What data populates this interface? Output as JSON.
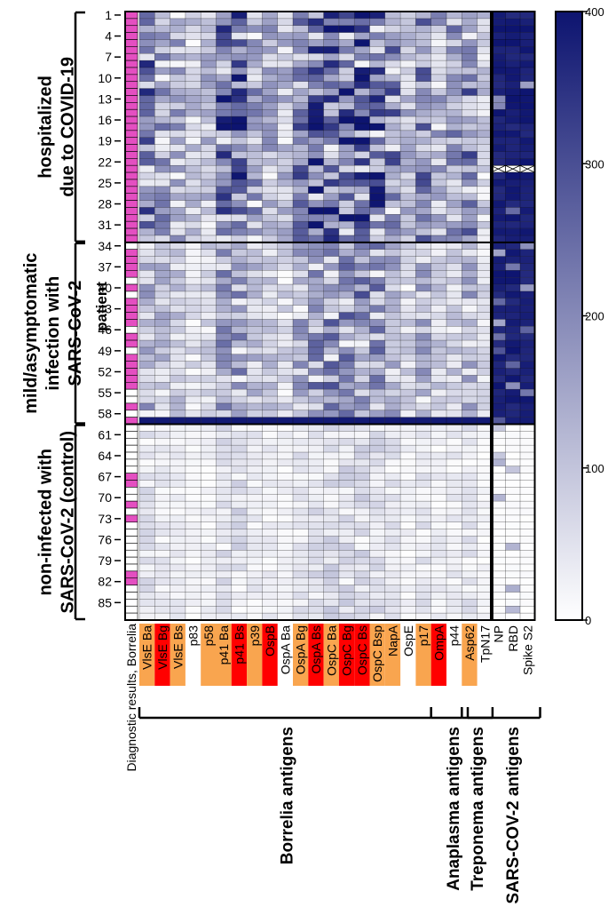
{
  "chart_data": {
    "type": "heatmap",
    "title": "",
    "row_axis_label": "patient",
    "row_tick_labels": [
      "1",
      "4",
      "7",
      "10",
      "13",
      "16",
      "19",
      "22",
      "25",
      "28",
      "31",
      "34",
      "37",
      "40",
      "43",
      "46",
      "49",
      "52",
      "55",
      "58",
      "61",
      "64",
      "67",
      "70",
      "73",
      "76",
      "79",
      "82",
      "85"
    ],
    "n_patients": 87,
    "groups": [
      {
        "name": "hospitalized due to COVID-19",
        "line1": "hospitalized",
        "line2": "due to COVID-19",
        "line3": "",
        "start": 1,
        "end": 33
      },
      {
        "name": "mild/asymptomatic infection with SARS-CoV-2",
        "line1": "mild/asymptomatic",
        "line2": "infection with",
        "line3": "SARS-CoV-2",
        "start": 34,
        "end": 59
      },
      {
        "name": "non-infected with SARS-CoV-2 (control)",
        "line1": "non-infected with",
        "line2": "SARS-CoV-2 (control)",
        "line3": "",
        "start": 60,
        "end": 87
      }
    ],
    "diagnostic_column_label": "Diagnostic results, Borrelia",
    "diagnostic_positive_color": "#e44fc1",
    "borrelia_antigens": [
      "VlsE Ba",
      "VlsE Bg",
      "VlsE Bs",
      "p83",
      "p58",
      "p41 Ba",
      "p41 Bs",
      "p39",
      "OspB",
      "OspA Ba",
      "OspA Bg",
      "OspA Bs",
      "OspC Ba",
      "OspC Bg",
      "OspC Bs",
      "OspC Bsp",
      "NapA",
      "OspE",
      "p17",
      "OmpA",
      "p44",
      "Asp62",
      "TpN17"
    ],
    "antigen_highlight": [
      "orange",
      "red",
      "orange",
      "none",
      "orange",
      "orange",
      "red",
      "orange",
      "red",
      "none",
      "orange",
      "red",
      "orange",
      "red",
      "red",
      "orange",
      "orange",
      "none",
      "orange",
      "red",
      "none",
      "orange",
      "none"
    ],
    "highlight_colors": {
      "orange": "#f9a54f",
      "red": "#ff0000"
    },
    "sars_cov2_antigens": [
      "NP",
      "RBD",
      "Spike S2"
    ],
    "antigen_groups": [
      {
        "label": "Borrelia antigens",
        "first": 0,
        "last": 18
      },
      {
        "label": "Anaplasma antigens",
        "first": 19,
        "last": 20
      },
      {
        "label": "Treponema antigens",
        "first": 21,
        "last": 22
      },
      {
        "label": "SARS-COV-2 antigens",
        "panel": "sars"
      }
    ],
    "missing_cells_note": "patient 23: SARS-CoV-2 antigens not measured (crossed cells)",
    "colorbar": {
      "min": 0,
      "max": 400,
      "ticks": [
        0,
        100,
        200,
        300,
        400
      ],
      "low_color": "#ffffff",
      "high_color": "#0d1470"
    },
    "value_range": [
      0,
      400
    ],
    "approximate_group_means": {
      "hospitalized": {
        "borrelia": 210,
        "sars_cov2": 380
      },
      "mild": {
        "borrelia": 130,
        "sars_cov2": 360
      },
      "control": {
        "borrelia": 45,
        "sars_cov2": 10
      }
    }
  }
}
